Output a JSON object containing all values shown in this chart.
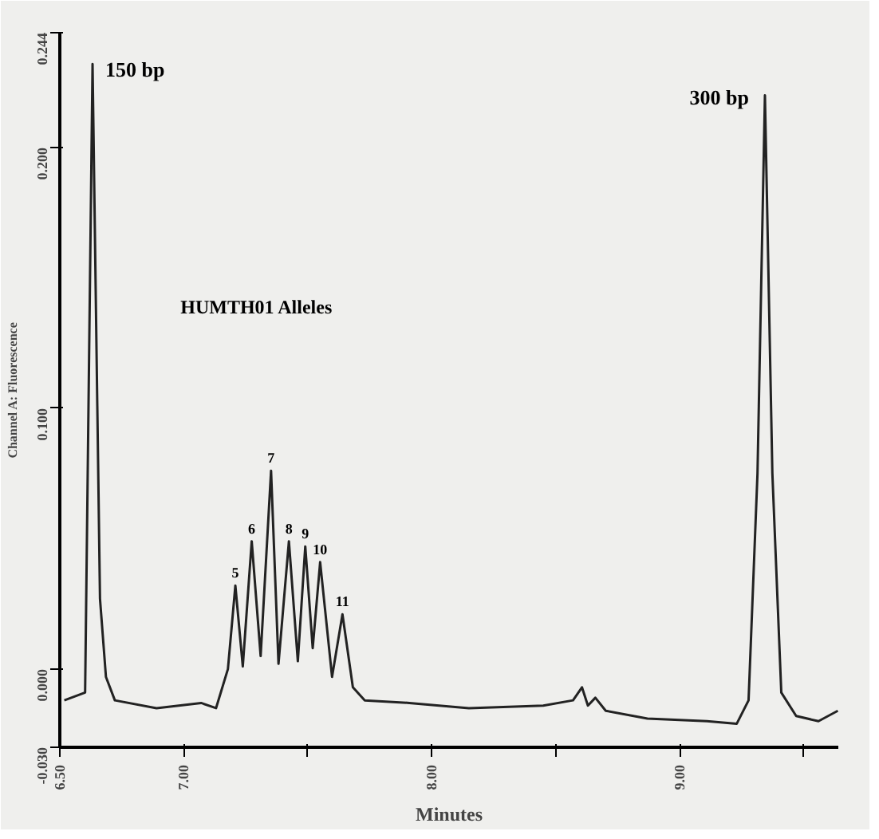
{
  "chart_data": {
    "type": "line",
    "xlabel": "Minutes",
    "ylabel": "Channel A: Fluorescence",
    "x": [
      6.518,
      6.602,
      6.632,
      6.662,
      6.686,
      6.722,
      6.89,
      7.07,
      7.13,
      7.178,
      7.208,
      7.238,
      7.274,
      7.31,
      7.352,
      7.382,
      7.424,
      7.46,
      7.49,
      7.52,
      7.55,
      7.598,
      7.64,
      7.682,
      7.73,
      7.91,
      8.15,
      8.45,
      8.57,
      8.606,
      8.63,
      8.66,
      8.702,
      8.87,
      9.11,
      9.23,
      9.278,
      9.314,
      9.344,
      9.374,
      9.41,
      9.47,
      9.56,
      9.638
    ],
    "series": [
      {
        "color": "#222222",
        "values": [
          -0.012,
          -0.009,
          0.232,
          0.027,
          -0.003,
          -0.012,
          -0.015,
          -0.013,
          -0.015,
          0.0,
          0.032,
          0.001,
          0.049,
          0.005,
          0.076,
          0.002,
          0.049,
          0.003,
          0.047,
          0.008,
          0.041,
          -0.003,
          0.021,
          -0.007,
          -0.012,
          -0.013,
          -0.015,
          -0.014,
          -0.012,
          -0.007,
          -0.014,
          -0.011,
          -0.016,
          -0.019,
          -0.02,
          -0.021,
          -0.012,
          0.075,
          0.22,
          0.075,
          -0.009,
          -0.018,
          -0.02,
          -0.016
        ]
      }
    ],
    "xlim": [
      6.5,
      9.64
    ],
    "ylim": [
      -0.03,
      0.244
    ],
    "xticks": [
      {
        "value": 6.5,
        "label": "6.50"
      },
      {
        "value": 7,
        "label": "7.00"
      },
      {
        "value": 7.5,
        "label": null
      },
      {
        "value": 8,
        "label": "8.00"
      },
      {
        "value": 8.5,
        "label": null
      },
      {
        "value": 9,
        "label": "9.00"
      },
      {
        "value": 9.5,
        "label": null
      }
    ],
    "yticks": [
      {
        "value": -0.03,
        "label": "-0.030"
      },
      {
        "value": 0,
        "label": "0.000"
      },
      {
        "value": 0.1,
        "label": "0.100"
      },
      {
        "value": 0.2,
        "label": "0.200"
      },
      {
        "value": 0.244,
        "label": "0.244"
      }
    ],
    "grid": false,
    "marker": "none",
    "line_style": "solid",
    "annotations": [
      {
        "text": "150 bp",
        "x": 6.632,
        "y": 0.232
      },
      {
        "text": "300 bp",
        "x": 9.344,
        "y": 0.22
      },
      "HUMTH01 Alleles",
      {
        "text": "5",
        "x": 7.208,
        "y": 0.032
      },
      {
        "text": "6",
        "x": 7.274,
        "y": 0.049
      },
      {
        "text": "7",
        "x": 7.352,
        "y": 0.076
      },
      {
        "text": "8",
        "x": 7.424,
        "y": 0.049
      },
      {
        "text": "9",
        "x": 7.49,
        "y": 0.047
      },
      {
        "text": "10",
        "x": 7.55,
        "y": 0.041
      },
      {
        "text": "11",
        "x": 7.64,
        "y": 0.021
      }
    ]
  }
}
